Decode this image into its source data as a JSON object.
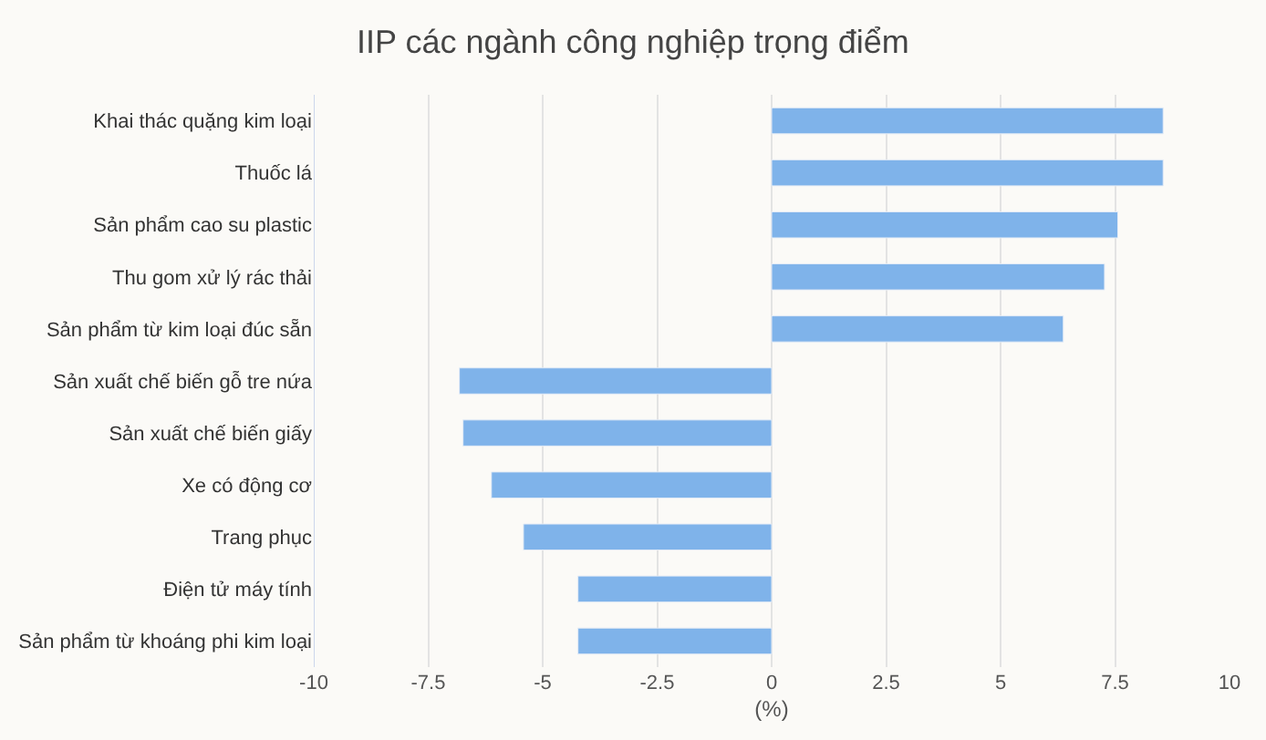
{
  "chart_data": {
    "type": "bar",
    "orientation": "horizontal",
    "title": "IIP các ngành công nghiệp trọng điểm",
    "xlabel": "(%)",
    "categories": [
      "Khai thác quặng kim loại",
      "Thuốc lá",
      "Sản phẩm cao su plastic",
      "Thu gom xử lý rác thải",
      "Sản phẩm từ kim loại đúc sẵn",
      "Sản xuất chế biến gỗ tre nứa",
      "Sản xuất chế biến giấy",
      "Xe có động cơ",
      "Trang phục",
      "Điện tử máy tính",
      "Sản phẩm từ khoáng phi kim loại"
    ],
    "values": [
      8.55,
      8.55,
      7.56,
      7.27,
      6.37,
      -6.82,
      -6.74,
      -6.12,
      -5.42,
      -4.23,
      -4.23
    ],
    "color": "#7fb3ea",
    "xlim": [
      -10,
      10
    ],
    "xticks": [
      -10,
      -7.5,
      -5,
      -2.5,
      0,
      2.5,
      5,
      7.5,
      10
    ],
    "grid": "x"
  }
}
